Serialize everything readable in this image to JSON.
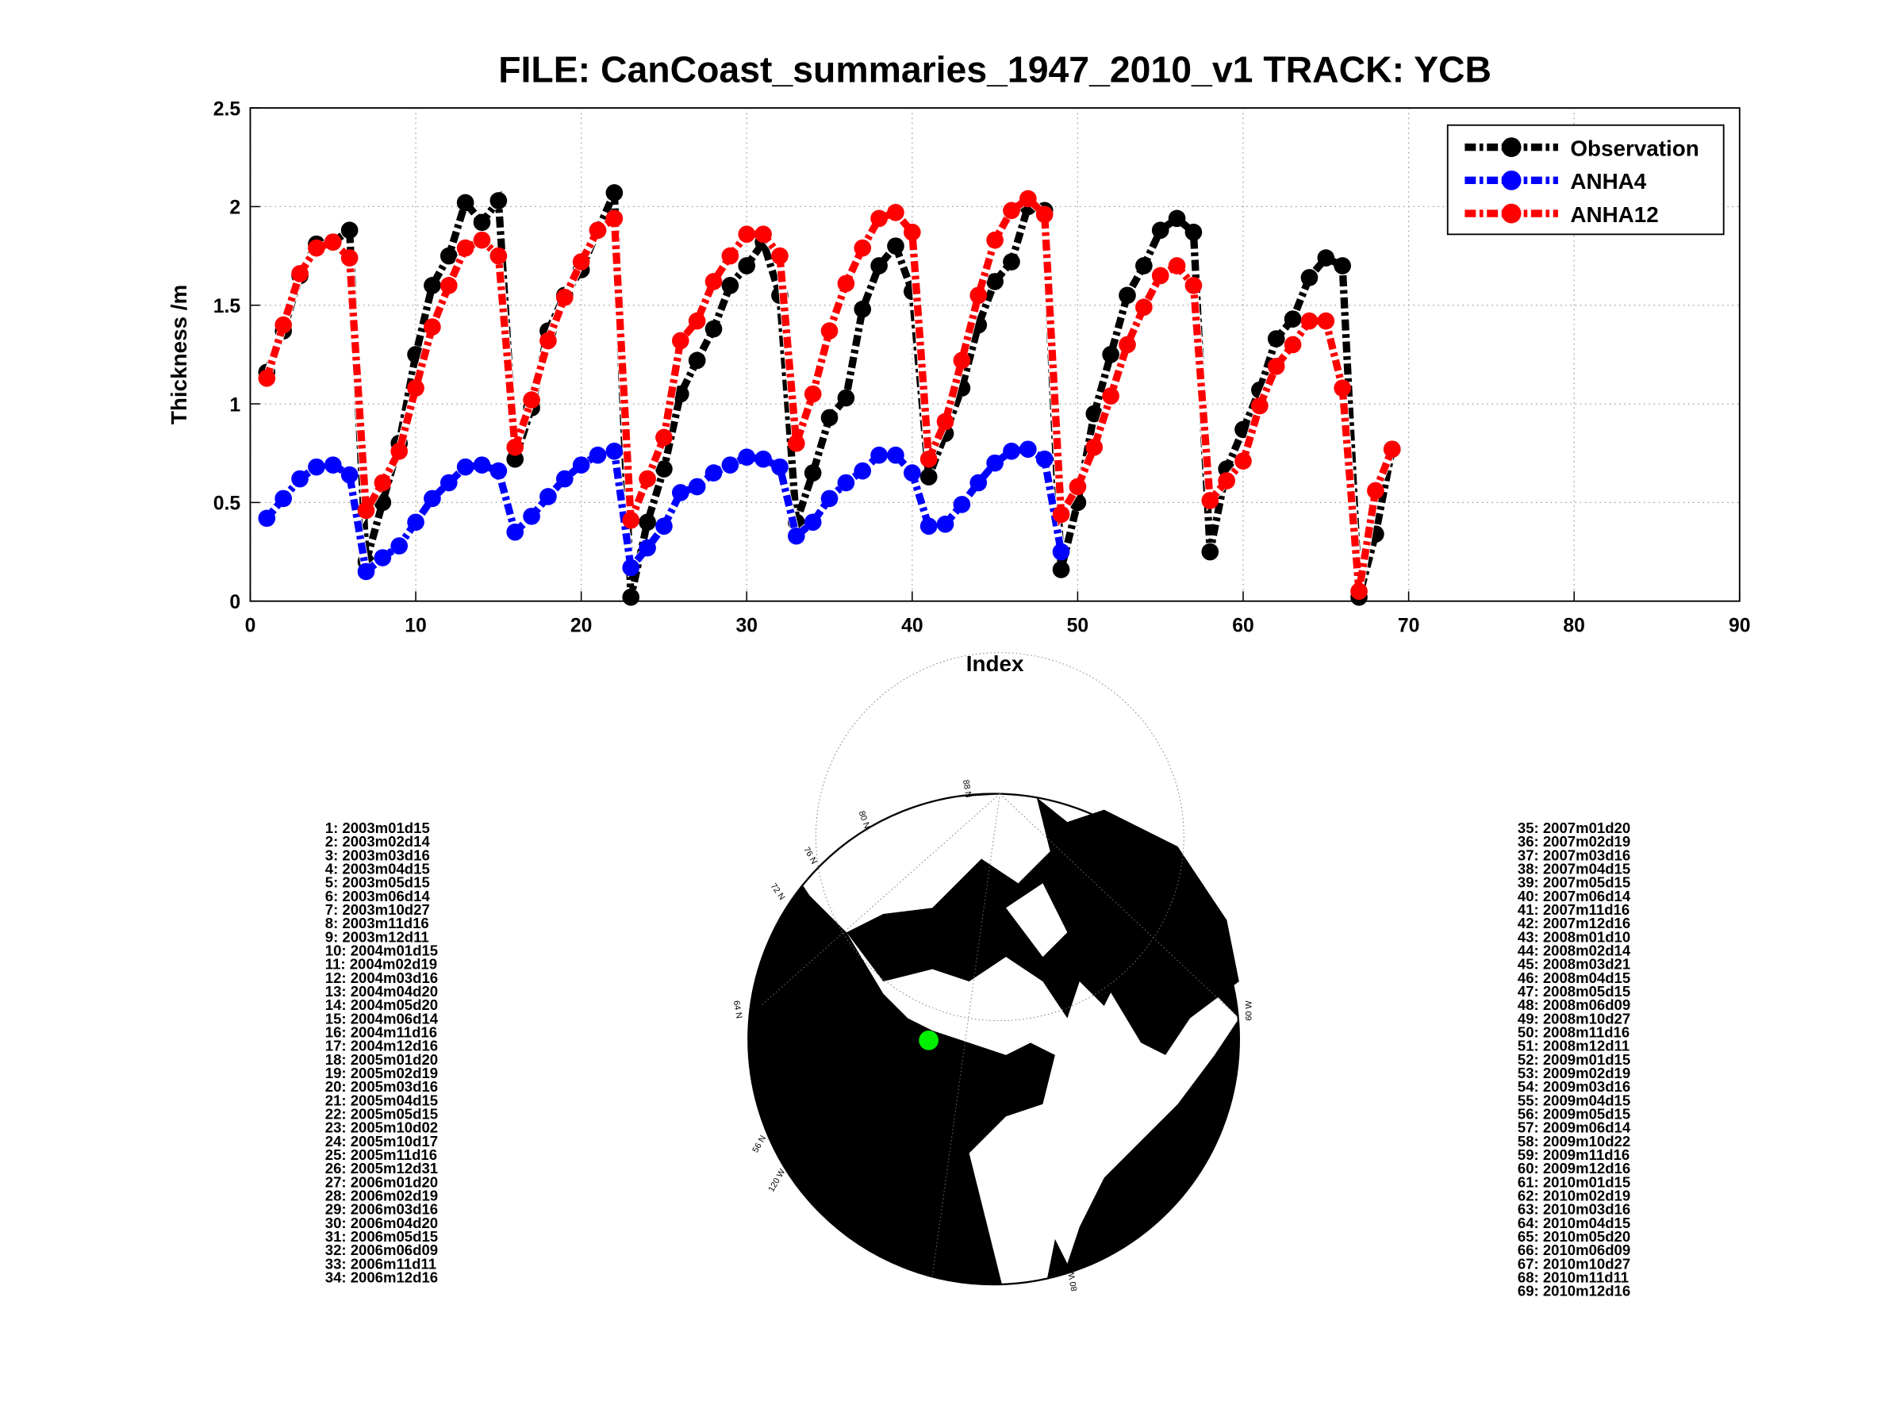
{
  "chart_data": {
    "type": "line",
    "title": "FILE: CanCoast_summaries_1947_2010_v1 TRACK: YCB",
    "x_label": "Index",
    "y_label": "Thickness /m",
    "x": [
      1,
      2,
      3,
      4,
      5,
      6,
      7,
      8,
      9,
      10,
      11,
      12,
      13,
      14,
      15,
      16,
      17,
      18,
      19,
      20,
      21,
      22,
      23,
      24,
      25,
      26,
      27,
      28,
      29,
      30,
      31,
      32,
      33,
      34,
      35,
      36,
      37,
      38,
      39,
      40,
      41,
      42,
      43,
      44,
      45,
      46,
      47,
      48,
      49,
      50,
      51,
      52,
      53,
      54,
      55,
      56,
      57,
      58,
      59,
      60,
      61,
      62,
      63,
      64,
      65,
      66,
      67,
      68,
      69
    ],
    "series": [
      {
        "name": "Observation",
        "color": "#000000",
        "values": [
          1.16,
          1.37,
          1.65,
          1.81,
          1.82,
          1.88,
          0.2,
          0.5,
          0.8,
          1.25,
          1.6,
          1.75,
          2.02,
          1.92,
          2.03,
          0.72,
          0.98,
          1.37,
          1.55,
          1.68,
          1.88,
          2.07,
          0.02,
          0.4,
          0.67,
          1.05,
          1.22,
          1.38,
          1.6,
          1.7,
          1.82,
          1.55,
          0.4,
          0.65,
          0.93,
          1.03,
          1.48,
          1.7,
          1.8,
          1.57,
          0.63,
          0.85,
          1.08,
          1.4,
          1.62,
          1.72,
          2.0,
          1.98,
          0.16,
          0.5,
          0.95,
          1.25,
          1.55,
          1.7,
          1.88,
          1.94,
          1.87,
          0.25,
          0.67,
          0.87,
          1.07,
          1.33,
          1.43,
          1.64,
          1.74,
          1.7,
          0.02,
          0.34,
          0.77
        ]
      },
      {
        "name": "ANHA4",
        "color": "#0000ff",
        "values": [
          0.42,
          0.52,
          0.62,
          0.68,
          0.69,
          0.64,
          0.15,
          0.22,
          0.28,
          0.4,
          0.52,
          0.6,
          0.68,
          0.69,
          0.66,
          0.35,
          0.43,
          0.53,
          0.62,
          0.69,
          0.74,
          0.76,
          0.17,
          0.27,
          0.38,
          0.55,
          0.58,
          0.65,
          0.69,
          0.73,
          0.72,
          0.68,
          0.33,
          0.4,
          0.52,
          0.6,
          0.66,
          0.74,
          0.74,
          0.65,
          0.38,
          0.39,
          0.49,
          0.6,
          0.7,
          0.76,
          0.77,
          0.72,
          0.25,
          null,
          null,
          null,
          null,
          null,
          null,
          null,
          null,
          null,
          null,
          null,
          null,
          null,
          null,
          null,
          null,
          null,
          null,
          null,
          null
        ]
      },
      {
        "name": "ANHA12",
        "color": "#ff0000",
        "values": [
          1.13,
          1.4,
          1.66,
          1.79,
          1.82,
          1.74,
          0.46,
          0.6,
          0.76,
          1.08,
          1.39,
          1.6,
          1.79,
          1.83,
          1.75,
          0.78,
          1.02,
          1.32,
          1.54,
          1.72,
          1.88,
          1.94,
          0.41,
          0.62,
          0.83,
          1.32,
          1.42,
          1.62,
          1.75,
          1.86,
          1.86,
          1.75,
          0.8,
          1.05,
          1.37,
          1.61,
          1.79,
          1.94,
          1.97,
          1.87,
          0.72,
          0.91,
          1.22,
          1.55,
          1.83,
          1.98,
          2.04,
          1.96,
          0.44,
          0.58,
          0.78,
          1.04,
          1.3,
          1.49,
          1.65,
          1.7,
          1.6,
          0.51,
          0.61,
          0.71,
          0.99,
          1.19,
          1.3,
          1.42,
          1.42,
          1.08,
          0.05,
          0.56,
          0.77
        ]
      }
    ],
    "xlim": [
      0,
      90
    ],
    "xticks": [
      0,
      10,
      20,
      30,
      40,
      50,
      60,
      70,
      80,
      90
    ],
    "ylim": [
      0,
      2.5
    ],
    "yticks": [
      0,
      0.5,
      1,
      1.5,
      2,
      2.5
    ],
    "grid": true,
    "legend": "upper right"
  },
  "dates": [
    "1: 2003m01d15",
    "2: 2003m02d14",
    "3: 2003m03d16",
    "4: 2003m04d15",
    "5: 2003m05d15",
    "6: 2003m06d14",
    "7: 2003m10d27",
    "8: 2003m11d16",
    "9: 2003m12d11",
    "10: 2004m01d15",
    "11: 2004m02d19",
    "12: 2004m03d16",
    "13: 2004m04d20",
    "14: 2004m05d20",
    "15: 2004m06d14",
    "16: 2004m11d16",
    "17: 2004m12d16",
    "18: 2005m01d20",
    "19: 2005m02d19",
    "20: 2005m03d16",
    "21: 2005m04d15",
    "22: 2005m05d15",
    "23: 2005m10d02",
    "24: 2005m10d17",
    "25: 2005m11d16",
    "26: 2005m12d31",
    "27: 2006m01d20",
    "28: 2006m02d19",
    "29: 2006m03d16",
    "30: 2006m04d20",
    "31: 2006m05d15",
    "32: 2006m06d09",
    "33: 2006m11d11",
    "34: 2006m12d16",
    "35: 2007m01d20",
    "36: 2007m02d19",
    "37: 2007m03d16",
    "38: 2007m04d15",
    "39: 2007m05d15",
    "40: 2007m06d14",
    "41: 2007m11d16",
    "42: 2007m12d16",
    "43: 2008m01d10",
    "44: 2008m02d14",
    "45: 2008m03d21",
    "46: 2008m04d15",
    "47: 2008m05d15",
    "48: 2008m06d09",
    "49: 2008m10d27",
    "50: 2008m11d16",
    "51: 2008m12d11",
    "52: 2009m01d15",
    "53: 2009m02d19",
    "54: 2009m03d16",
    "55: 2009m04d15",
    "56: 2009m05d15",
    "57: 2009m06d14",
    "58: 2009m10d22",
    "59: 2009m11d16",
    "60: 2009m12d16",
    "61: 2010m01d15",
    "62: 2010m02d19",
    "63: 2010m03d16",
    "64: 2010m04d15",
    "65: 2010m05d20",
    "66: 2010m06d09",
    "67: 2010m10d27",
    "68: 2010m11d11",
    "69: 2010m12d16"
  ],
  "map": {
    "labels": [
      "88 N",
      "80 N",
      "76 N",
      "72 N",
      "64 N",
      "56 N",
      "120 W",
      "60 W",
      "80 W"
    ]
  }
}
